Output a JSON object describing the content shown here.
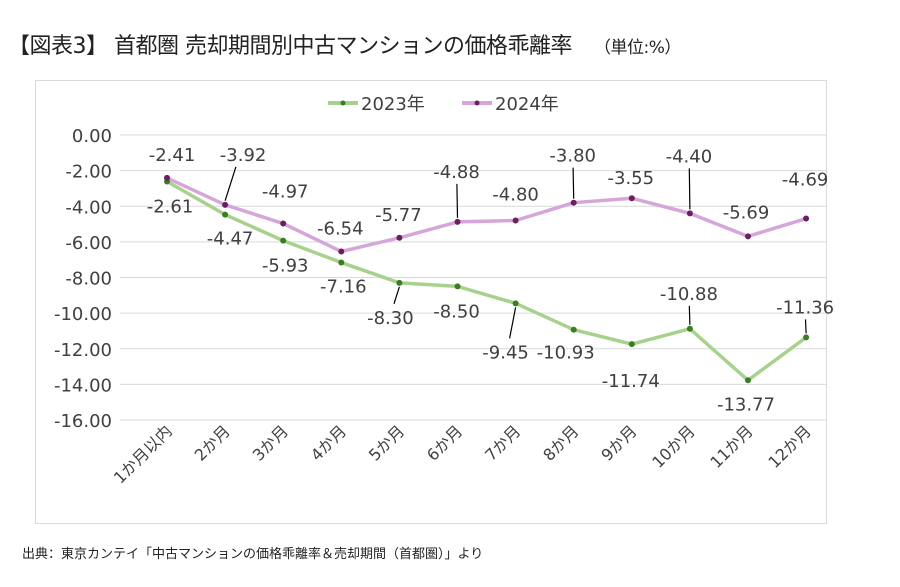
{
  "title": "【図表3】 首都圏  売却期間別中古マンションの価格乖離率",
  "unit": "（単位:%）",
  "source": "出典：東京カンテイ「中古マンションの価格乖離率＆売却期間（首都圏）」より",
  "chart_data": {
    "type": "line",
    "title": "首都圏 売却期間別中古マンションの価格乖離率",
    "xlabel": "",
    "ylabel": "",
    "ylim": [
      -16,
      0
    ],
    "yticks": [
      "0.00",
      "-2.00",
      "-4.00",
      "-6.00",
      "-8.00",
      "-10.00",
      "-12.00",
      "-14.00",
      "-16.00"
    ],
    "grid": true,
    "legend_position": "top",
    "categories": [
      "1か月以内",
      "2か月",
      "3か月",
      "4か月",
      "5か月",
      "6か月",
      "7か月",
      "8か月",
      "9か月",
      "10か月",
      "11か月",
      "12か月"
    ],
    "series": [
      {
        "name": "2023年",
        "color": "#a9d18e",
        "marker_color": "#3a7d22",
        "values": [
          -2.61,
          -4.47,
          -5.93,
          -7.16,
          -8.3,
          -8.5,
          -9.45,
          -10.93,
          -11.74,
          -10.88,
          -13.77,
          -11.36
        ],
        "labels": [
          "-2.61",
          "-4.47",
          "-5.93",
          "-7.16",
          "-8.30",
          "-8.50",
          "-9.45",
          "-10.93",
          "-11.74",
          "-10.88",
          "-13.77",
          "-11.36"
        ]
      },
      {
        "name": "2024年",
        "color": "#d5a6d9",
        "marker_color": "#6b1f5e",
        "values": [
          -2.41,
          -3.92,
          -4.97,
          -6.54,
          -5.77,
          -4.88,
          -4.8,
          -3.8,
          -3.55,
          -4.4,
          -5.69,
          -4.69
        ],
        "labels": [
          "-2.41",
          "-3.92",
          "-4.97",
          "-6.54",
          "-5.77",
          "-4.88",
          "-4.80",
          "-3.80",
          "-3.55",
          "-4.40",
          "-5.69",
          "-4.69"
        ]
      }
    ]
  }
}
